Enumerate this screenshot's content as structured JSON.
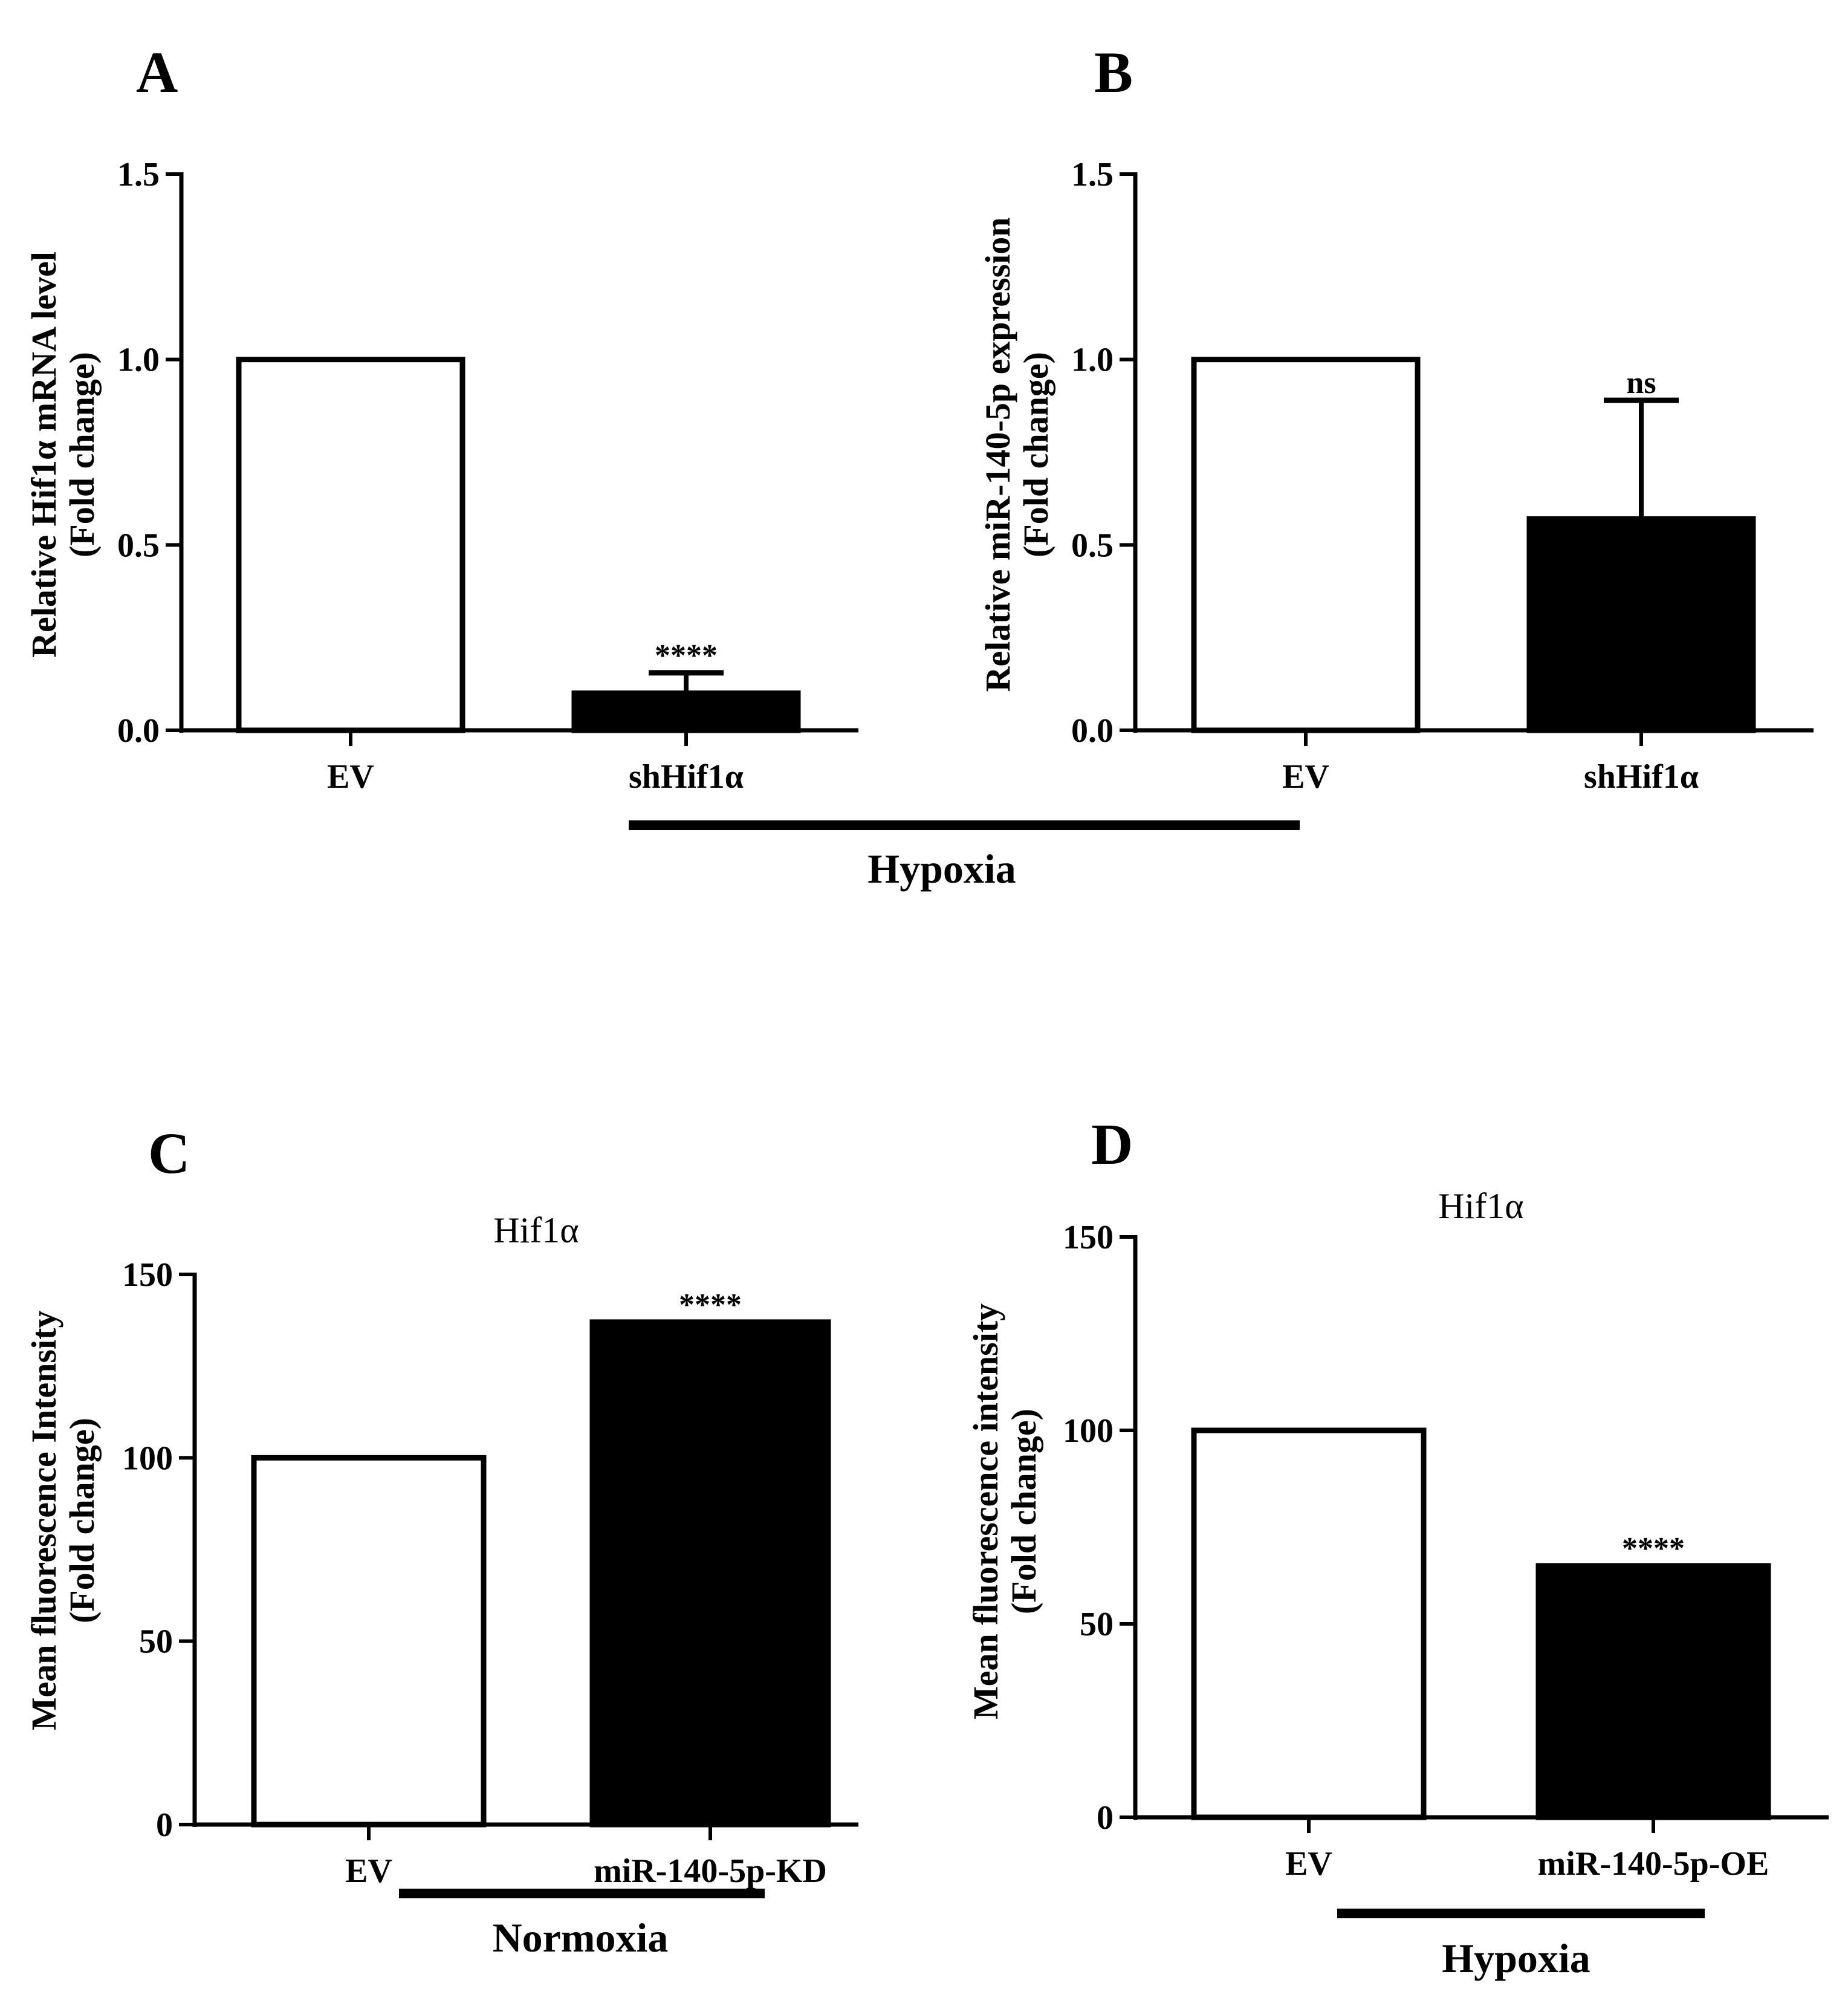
{
  "chart_data": [
    {
      "id": "A",
      "panel_label": "A",
      "type": "bar",
      "title": "",
      "ylabel_line1": "Relative Hif1α mRNA level",
      "ylabel_line2": "(Fold change)",
      "ylim": [
        0,
        1.5
      ],
      "yticks": [
        "0.0",
        "0.5",
        "1.0",
        "1.5"
      ],
      "ytick_values": [
        0,
        0.5,
        1.0,
        1.5
      ],
      "categories": [
        "EV",
        "shHif1α"
      ],
      "values": [
        1.0,
        0.1
      ],
      "error_upper": [
        null,
        0.155
      ],
      "fills": [
        "#ffffff",
        "#000000"
      ],
      "significance": [
        null,
        "****"
      ]
    },
    {
      "id": "B",
      "panel_label": "B",
      "type": "bar",
      "title": "",
      "ylabel_line1": "Relative miR-140-5p expression",
      "ylabel_line2": "(Fold change)",
      "ylim": [
        0,
        1.5
      ],
      "yticks": [
        "0.0",
        "0.5",
        "1.0",
        "1.5"
      ],
      "ytick_values": [
        0,
        0.5,
        1.0,
        1.5
      ],
      "categories": [
        "EV",
        "shHif1α"
      ],
      "values": [
        1.0,
        0.57
      ],
      "error_upper": [
        null,
        0.89
      ],
      "fills": [
        "#ffffff",
        "#000000"
      ],
      "significance": [
        null,
        "ns"
      ]
    },
    {
      "id": "C",
      "panel_label": "C",
      "type": "bar",
      "title": "Hif1α",
      "ylabel_line1": "Mean fluorescence Intensity",
      "ylabel_line2": "(Fold change)",
      "ylim": [
        0,
        150
      ],
      "yticks": [
        "0",
        "50",
        "100",
        "150"
      ],
      "ytick_values": [
        0,
        50,
        100,
        150
      ],
      "categories": [
        "EV",
        "miR-140-5p-KD"
      ],
      "values": [
        100,
        137
      ],
      "error_upper": [
        null,
        null
      ],
      "fills": [
        "#ffffff",
        "#000000"
      ],
      "significance": [
        null,
        "****"
      ]
    },
    {
      "id": "D",
      "panel_label": "D",
      "type": "bar",
      "title": "Hif1α",
      "ylabel_line1": "Mean fluorescence intensity",
      "ylabel_line2": "(Fold change)",
      "ylim": [
        0,
        150
      ],
      "yticks": [
        "0",
        "50",
        "100",
        "150"
      ],
      "ytick_values": [
        0,
        50,
        100,
        150
      ],
      "categories": [
        "EV",
        "miR-140-5p-OE"
      ],
      "values": [
        100,
        65
      ],
      "error_upper": [
        null,
        null
      ],
      "fills": [
        "#ffffff",
        "#000000"
      ],
      "significance": [
        null,
        "****"
      ]
    }
  ],
  "conditions": {
    "top": "Hypoxia",
    "c": "Normoxia",
    "d": "Hypoxia"
  }
}
